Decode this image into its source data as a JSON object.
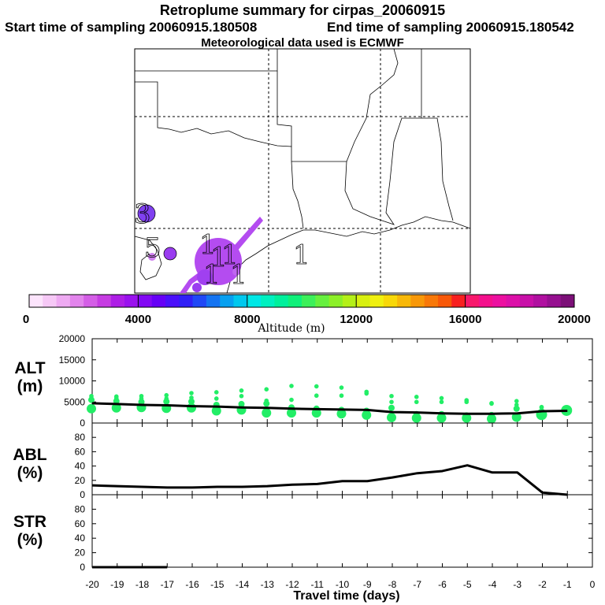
{
  "header": {
    "title": "Retroplume summary for cirpas_20060915",
    "start_sampling": "Start time of sampling 20060915.180508",
    "end_sampling": "End time of sampling 20060915.180542",
    "met_data": "Meteorological data used is ECMWF"
  },
  "map": {
    "cluster_labels": [
      "3",
      "5",
      "1",
      "1",
      "1",
      "1",
      "1",
      "1"
    ]
  },
  "colorbar": {
    "title": "Altitude (m)",
    "tick_labels": [
      "0",
      "4000",
      "8000",
      "12000",
      "16000",
      "20000"
    ],
    "colors": [
      "#fce4fc",
      "#f6c8f6",
      "#eeaaf2",
      "#e284ec",
      "#d45ee6",
      "#c63ce2",
      "#ae1ee6",
      "#9a12ee",
      "#8208f4",
      "#6600f6",
      "#4a10fa",
      "#3020f6",
      "#2048f6",
      "#1474f2",
      "#08a0f0",
      "#00c8ee",
      "#00e8e6",
      "#00f0c0",
      "#00f09c",
      "#10f07a",
      "#3cf05a",
      "#66f03e",
      "#8cf028",
      "#b4f018",
      "#d8f010",
      "#f0f010",
      "#f8d808",
      "#f8b808",
      "#f89808",
      "#f87808",
      "#f85808",
      "#f82020",
      "#f8186c",
      "#f4108c",
      "#ec10a0",
      "#dc10a8",
      "#c810a8",
      "#b010a0",
      "#961090",
      "#7c1078"
    ]
  },
  "chart_data": [
    {
      "type": "line",
      "panel": "ALT",
      "ylabel": "ALT\n(m)",
      "ylim": [
        0,
        20000
      ],
      "y_ticks": [
        "0",
        "5000",
        "10000",
        "15000",
        "20000"
      ],
      "x": [
        -20,
        -19,
        -18,
        -17,
        -16,
        -15,
        -14,
        -13,
        -12,
        -11,
        -10,
        -9,
        -8,
        -7,
        -6,
        -5,
        -4,
        -3,
        -2,
        -1
      ],
      "series": [
        {
          "name": "mean altitude",
          "values": [
            4700,
            4500,
            4300,
            4200,
            4000,
            3900,
            3700,
            3600,
            3400,
            3300,
            3200,
            3100,
            2600,
            2500,
            2300,
            2200,
            2200,
            2300,
            2800,
            2900
          ]
        },
        {
          "name": "cluster altitude low",
          "values": [
            3400,
            3600,
            3700,
            3500,
            3600,
            2900,
            3100,
            2400,
            2400,
            2400,
            2200,
            1900,
            1300,
            1200,
            1200,
            1200,
            1000,
            1400,
            2000,
            3000
          ]
        },
        {
          "name": "cluster altitude mid",
          "values": [
            5500,
            5200,
            5000,
            5100,
            5100,
            4300,
            4500,
            4600,
            3700,
            3400,
            3100,
            2900,
            3600,
            2100,
            2100,
            1800,
            1900,
            3400,
            2700,
            3100
          ]
        },
        {
          "name": "cluster altitude high",
          "values": [
            6400,
            6300,
            6400,
            6600,
            7100,
            7300,
            7700,
            8000,
            8800,
            8700,
            8400,
            7000,
            6400,
            6200,
            5900,
            5400,
            4600,
            4300,
            3700,
            3400
          ]
        },
        {
          "name": "cluster altitude top",
          "values": [
            5900,
            5900,
            5800,
            5800,
            6000,
            5800,
            6400,
            5300,
            5500,
            6500,
            6500,
            7400,
            5000,
            5000,
            5000,
            5000,
            4700,
            5200,
            3800,
            3000
          ]
        }
      ]
    },
    {
      "type": "line",
      "panel": "ABL",
      "ylabel": "ABL\n(%)",
      "ylim": [
        0,
        100
      ],
      "y_ticks": [
        "0",
        "20",
        "40",
        "60",
        "80"
      ],
      "x": [
        -20,
        -19,
        -18,
        -17,
        -16,
        -15,
        -14,
        -13,
        -12,
        -11,
        -10,
        -9,
        -8,
        -7,
        -6,
        -5,
        -4,
        -3,
        -2,
        -1
      ],
      "series": [
        {
          "name": "ABL fraction",
          "values": [
            13,
            12,
            11,
            10,
            10,
            11,
            11,
            12,
            14,
            15,
            19,
            19,
            24,
            30,
            33,
            41,
            31,
            31,
            3,
            0
          ]
        }
      ]
    },
    {
      "type": "line",
      "panel": "STR",
      "ylabel": "STR\n(%)",
      "ylim": [
        0,
        100
      ],
      "y_ticks": [
        "0",
        "20",
        "40",
        "60",
        "80"
      ],
      "x": [
        -20,
        -19,
        -18,
        -17,
        -16,
        -15,
        -14,
        -13,
        -12,
        -11,
        -10,
        -9,
        -8,
        -7,
        -6,
        -5,
        -4,
        -3,
        -2,
        -1
      ],
      "series": [
        {
          "name": "stratospheric fraction",
          "values": [
            0,
            0,
            0,
            0,
            0,
            0,
            0,
            0,
            0,
            0,
            0,
            0,
            0,
            0,
            0,
            0,
            0,
            0,
            0,
            0
          ]
        }
      ]
    }
  ],
  "xaxis": {
    "xlabel": "Travel time (days)",
    "tick_labels": [
      "-20",
      "-19",
      "-18",
      "-17",
      "-16",
      "-15",
      "-14",
      "-13",
      "-12",
      "-11",
      "-10",
      "-9",
      "-8",
      "-7",
      "-6",
      "-5",
      "-4",
      "-3",
      "-2",
      "-1",
      "0"
    ]
  },
  "colors": {
    "alt_dots": "#22ee66",
    "plume": "#b44cf0",
    "plume_dark": "#8040f0",
    "plume_light": "#d080f0",
    "line": "#000000"
  }
}
